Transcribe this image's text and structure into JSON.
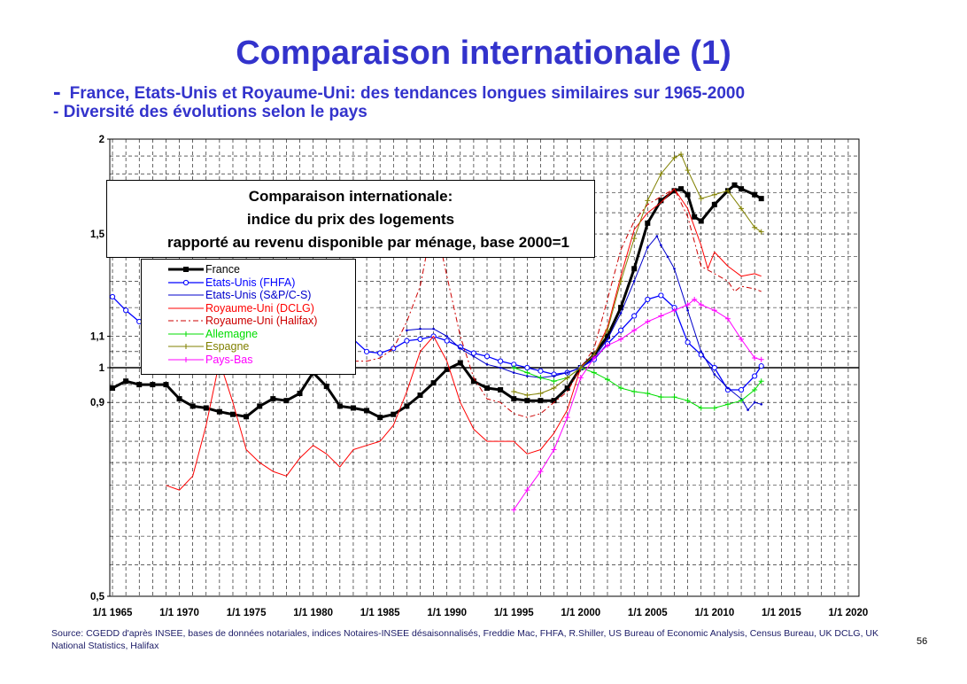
{
  "slide": {
    "title": "Comparaison internationale (1)",
    "subtitle_dash": "-",
    "subtitle1": "France, Etats-Unis et Royaume-Uni: des tendances longues similaires sur 1965-2000",
    "subtitle2": "- Diversité des évolutions selon le pays",
    "source": "Source: CGEDD d'après INSEE, bases de données notariales, indices Notaires-INSEE désaisonnalisés, Freddie Mac, FHFA, R.Shiller, US Bureau of Economic Analysis, Census Bureau, UK DCLG, UK National Statistics, Halifax",
    "page_number": "56"
  },
  "chart_data": {
    "type": "line",
    "title_lines": [
      "Comparaison internationale:",
      "indice du prix des logements",
      "rapporté au revenu disponible par ménage, base 2000=1"
    ],
    "y_scale": "log",
    "ylim": [
      0.5,
      2
    ],
    "xlim": [
      1965,
      2021
    ],
    "y_ticks": [
      {
        "value": 0.5,
        "label": "0,5"
      },
      {
        "value": 0.9,
        "label": "0,9"
      },
      {
        "value": 1.0,
        "label": "1"
      },
      {
        "value": 1.1,
        "label": "1,1"
      },
      {
        "value": 1.5,
        "label": "1,5"
      },
      {
        "value": 2.0,
        "label": "2"
      }
    ],
    "x_ticks": [
      {
        "value": 1965,
        "label": "1/1 1965"
      },
      {
        "value": 1970,
        "label": "1/1 1970"
      },
      {
        "value": 1975,
        "label": "1/1 1975"
      },
      {
        "value": 1980,
        "label": "1/1 1980"
      },
      {
        "value": 1985,
        "label": "1/1 1985"
      },
      {
        "value": 1990,
        "label": "1/1 1990"
      },
      {
        "value": 1995,
        "label": "1/1 1995"
      },
      {
        "value": 2000,
        "label": "1/1 2000"
      },
      {
        "value": 2005,
        "label": "1/1 2005"
      },
      {
        "value": 2010,
        "label": "1/1 2010"
      },
      {
        "value": 2015,
        "label": "1/1 2015"
      },
      {
        "value": 2020,
        "label": "1/1 2020"
      }
    ],
    "grid": true,
    "legend_position": "upper-left",
    "series": [
      {
        "name": "France",
        "color": "#000000",
        "width": 3,
        "marker": "square",
        "dash": "",
        "x": [
          1965,
          1966,
          1967,
          1968,
          1969,
          1970,
          1971,
          1972,
          1973,
          1974,
          1975,
          1976,
          1977,
          1978,
          1979,
          1980,
          1981,
          1982,
          1983,
          1984,
          1985,
          1986,
          1987,
          1988,
          1989,
          1990,
          1991,
          1992,
          1993,
          1994,
          1995,
          1996,
          1997,
          1998,
          1999,
          2000,
          2001,
          2002,
          2003,
          2004,
          2005,
          2006,
          2007,
          2007.5,
          2008,
          2008.5,
          2009,
          2010,
          2011,
          2011.5,
          2012,
          2013,
          2013.5
        ],
        "y": [
          0.94,
          0.96,
          0.95,
          0.95,
          0.95,
          0.91,
          0.89,
          0.885,
          0.875,
          0.868,
          0.862,
          0.89,
          0.91,
          0.905,
          0.925,
          0.985,
          0.945,
          0.89,
          0.885,
          0.878,
          0.86,
          0.868,
          0.89,
          0.92,
          0.955,
          0.995,
          1.015,
          0.96,
          0.94,
          0.935,
          0.91,
          0.905,
          0.905,
          0.905,
          0.94,
          1.0,
          1.04,
          1.1,
          1.2,
          1.35,
          1.55,
          1.66,
          1.71,
          1.72,
          1.69,
          1.58,
          1.56,
          1.64,
          1.71,
          1.74,
          1.72,
          1.69,
          1.67
        ]
      },
      {
        "name": "Etats-Unis (FHFA)",
        "color": "#0000ff",
        "width": 1.3,
        "marker": "circle",
        "dash": "",
        "x": [
          1965,
          1966,
          1967,
          1968,
          1969,
          1970,
          1971,
          1972,
          1973,
          1974,
          1975,
          1976,
          1977,
          1978,
          1979,
          1980,
          1981,
          1982,
          1983,
          1984,
          1985,
          1986,
          1987,
          1988,
          1989,
          1990,
          1991,
          1992,
          1993,
          1994,
          1995,
          1996,
          1997,
          1998,
          1999,
          2000,
          2001,
          2002,
          2003,
          2004,
          2005,
          2006,
          2007,
          2008,
          2009,
          2010,
          2011,
          2012,
          2013,
          2013.5
        ],
        "y": [
          1.24,
          1.19,
          1.15,
          1.12,
          1.125,
          1.13,
          1.105,
          1.1,
          1.105,
          1.1,
          1.085,
          1.1,
          1.12,
          1.16,
          1.195,
          1.21,
          1.175,
          1.125,
          1.09,
          1.05,
          1.045,
          1.06,
          1.085,
          1.09,
          1.1,
          1.085,
          1.065,
          1.045,
          1.035,
          1.02,
          1.01,
          1.0,
          0.99,
          0.98,
          0.985,
          1.0,
          1.025,
          1.075,
          1.12,
          1.17,
          1.23,
          1.245,
          1.2,
          1.08,
          1.04,
          1.0,
          0.935,
          0.935,
          0.975,
          1.005
        ]
      },
      {
        "name": "Etats-Unis (S&P/C-S)",
        "color": "#0000cc",
        "width": 1,
        "marker": "dot",
        "dash": "",
        "x": [
          1987,
          1988,
          1989,
          1990,
          1991,
          1992,
          1993,
          1994,
          1995,
          1996,
          1997,
          1998,
          1999,
          2000,
          2001,
          2002,
          2003,
          2004,
          2005,
          2005.7,
          2006,
          2006.5,
          2007,
          2008,
          2009,
          2010,
          2011,
          2012,
          2012.5,
          2013,
          2013.5
        ],
        "y": [
          1.12,
          1.125,
          1.125,
          1.1,
          1.06,
          1.035,
          1.01,
          1.0,
          0.985,
          0.975,
          0.97,
          0.975,
          0.985,
          1.0,
          1.03,
          1.09,
          1.18,
          1.3,
          1.44,
          1.49,
          1.45,
          1.4,
          1.35,
          1.19,
          1.05,
          0.98,
          0.94,
          0.91,
          0.88,
          0.9,
          0.895
        ]
      },
      {
        "name": "Royaume-Uni (DCLG)",
        "color": "#ff0000",
        "width": 1,
        "marker": "none",
        "dash": "",
        "x": [
          1969,
          1970,
          1971,
          1972,
          1973,
          1974,
          1975,
          1976,
          1977,
          1978,
          1979,
          1980,
          1981,
          1982,
          1983,
          1984,
          1985,
          1986,
          1987,
          1988,
          1989,
          1990,
          1991,
          1992,
          1993,
          1994,
          1995,
          1996,
          1997,
          1998,
          1999,
          2000,
          2001,
          2002,
          2003,
          2004,
          2005,
          2006,
          2007,
          2008,
          2009,
          2009.5,
          2010,
          2011,
          2012,
          2013,
          2013.5
        ],
        "y": [
          0.7,
          0.69,
          0.72,
          0.84,
          1.02,
          0.9,
          0.78,
          0.75,
          0.73,
          0.72,
          0.76,
          0.79,
          0.77,
          0.74,
          0.78,
          0.79,
          0.8,
          0.84,
          0.93,
          1.05,
          1.1,
          1.02,
          0.9,
          0.83,
          0.8,
          0.8,
          0.8,
          0.77,
          0.78,
          0.82,
          0.88,
          1.0,
          1.04,
          1.13,
          1.32,
          1.52,
          1.6,
          1.65,
          1.72,
          1.62,
          1.45,
          1.35,
          1.42,
          1.36,
          1.32,
          1.33,
          1.32
        ]
      },
      {
        "name": "Royaume-Uni (Halifax)",
        "color": "#cc0000",
        "width": 1,
        "marker": "none",
        "dash": "6,3,2,3",
        "x": [
          1983,
          1984,
          1985,
          1986,
          1987,
          1988,
          1988.5,
          1989,
          1989.5,
          1990,
          1991,
          1992,
          1993,
          1994,
          1995,
          1996,
          1997,
          1998,
          1999,
          2000,
          2001,
          2002,
          2003,
          2004,
          2005,
          2006,
          2007,
          2008,
          2009,
          2010,
          2011,
          2011.5,
          2012,
          2013,
          2013.5
        ],
        "y": [
          1.02,
          1.02,
          1.03,
          1.06,
          1.15,
          1.28,
          1.42,
          1.49,
          1.45,
          1.32,
          1.1,
          0.97,
          0.91,
          0.9,
          0.87,
          0.86,
          0.87,
          0.9,
          0.93,
          1.0,
          1.06,
          1.23,
          1.43,
          1.56,
          1.64,
          1.68,
          1.72,
          1.58,
          1.36,
          1.33,
          1.3,
          1.26,
          1.28,
          1.27,
          1.26
        ]
      },
      {
        "name": "Allemagne",
        "color": "#00dd00",
        "width": 1,
        "marker": "plus",
        "dash": "",
        "x": [
          1995,
          1996,
          1997,
          1998,
          1999,
          2000,
          2001,
          2002,
          2003,
          2004,
          2005,
          2006,
          2007,
          2008,
          2009,
          2010,
          2011,
          2012,
          2013,
          2013.5
        ],
        "y": [
          1.0,
          0.985,
          0.97,
          0.96,
          0.97,
          1.0,
          0.985,
          0.965,
          0.94,
          0.93,
          0.925,
          0.915,
          0.915,
          0.905,
          0.885,
          0.885,
          0.895,
          0.905,
          0.935,
          0.96
        ]
      },
      {
        "name": "Espagne",
        "color": "#808000",
        "width": 1,
        "marker": "plus",
        "dash": "",
        "x": [
          1995,
          1996,
          1997,
          1998,
          1999,
          2000,
          2001,
          2002,
          2003,
          2004,
          2005,
          2006,
          2007,
          2007.5,
          2008,
          2009,
          2010,
          2011,
          2012,
          2013,
          2013.5
        ],
        "y": [
          0.93,
          0.92,
          0.925,
          0.94,
          0.97,
          1.0,
          1.04,
          1.12,
          1.3,
          1.48,
          1.66,
          1.8,
          1.89,
          1.91,
          1.82,
          1.67,
          1.69,
          1.71,
          1.62,
          1.53,
          1.51
        ]
      },
      {
        "name": "Pays-Bas",
        "color": "#ff00ff",
        "width": 1,
        "marker": "plus",
        "dash": "",
        "x": [
          1995,
          1996,
          1997,
          1998,
          1999,
          2000,
          2001,
          2002,
          2003,
          2004,
          2005,
          2006,
          2007,
          2008,
          2008.5,
          2009,
          2010,
          2011,
          2012,
          2013,
          2013.5
        ],
        "y": [
          0.65,
          0.69,
          0.73,
          0.78,
          0.86,
          0.97,
          1.03,
          1.07,
          1.09,
          1.12,
          1.15,
          1.17,
          1.19,
          1.21,
          1.23,
          1.21,
          1.19,
          1.16,
          1.09,
          1.03,
          1.025
        ]
      }
    ]
  }
}
